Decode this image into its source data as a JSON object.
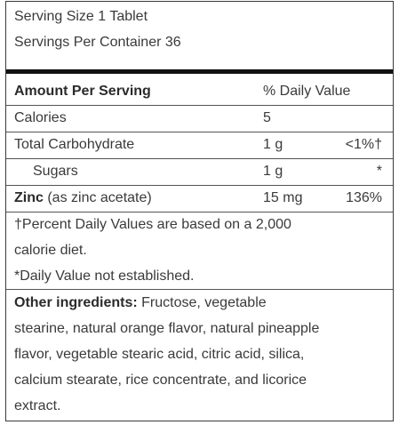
{
  "serving": {
    "size": "Serving Size 1 Tablet",
    "per_container": "Servings Per Container 36"
  },
  "header": {
    "amount": "Amount Per Serving",
    "dv": "% Daily Value"
  },
  "rows": [
    {
      "name": "Calories",
      "amount": "5",
      "dv": ""
    },
    {
      "name": "Total Carbohydrate",
      "amount": "1 g",
      "dv": "<1%†"
    },
    {
      "name": "Sugars",
      "amount": "1 g",
      "dv": "*"
    },
    {
      "name_bold": "Zinc",
      "name_rest": " (as zinc acetate)",
      "amount": "15 mg",
      "dv": "136%"
    }
  ],
  "footnotes": {
    "line1": "†Percent Daily Values are based on a 2,000",
    "line2": "calorie diet.",
    "line3": "*Daily Value not established."
  },
  "ingredients": {
    "label": "Other ingredients:",
    "line1": " Fructose, vegetable",
    "line2": "stearine, natural orange flavor, natural pineapple",
    "line3": "flavor, vegetable stearic acid, citric acid, silica,",
    "line4": "calcium stearate, rice concentrate, and licorice",
    "line5": "extract."
  }
}
